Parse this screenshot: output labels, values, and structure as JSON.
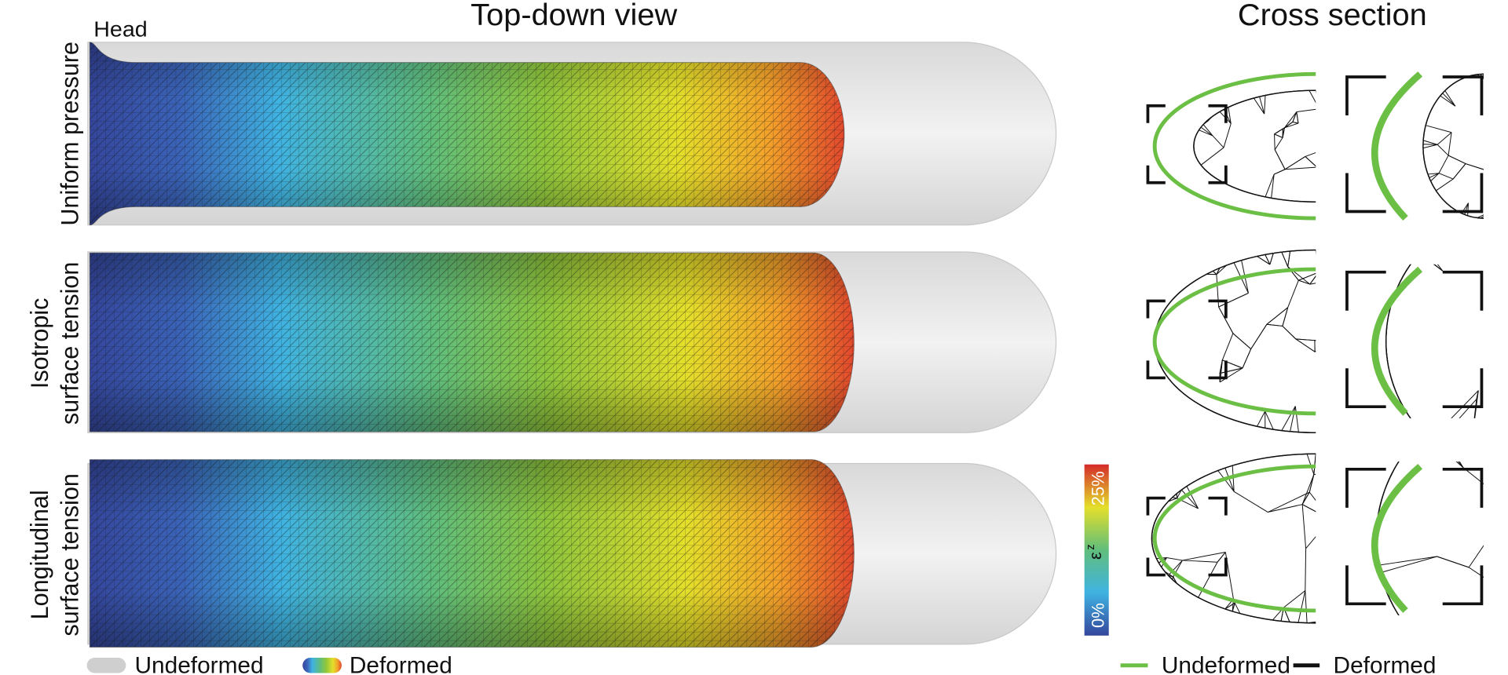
{
  "headers": {
    "top_down": "Top-down view",
    "cross_section": "Cross section"
  },
  "head_label": "Head",
  "rows": [
    {
      "label_lines": [
        "Uniform pressure"
      ]
    },
    {
      "label_lines": [
        "Isotropic",
        "surface tension"
      ]
    },
    {
      "label_lines": [
        "Longitudinal",
        "surface tension"
      ]
    }
  ],
  "colorbar": {
    "max_label": "25%",
    "min_label": "0%",
    "symbol": "ε",
    "subscript": "z"
  },
  "legend_left": [
    "Undeformed",
    "Deformed"
  ],
  "legend_right": [
    "Undeformed",
    "Deformed"
  ]
}
